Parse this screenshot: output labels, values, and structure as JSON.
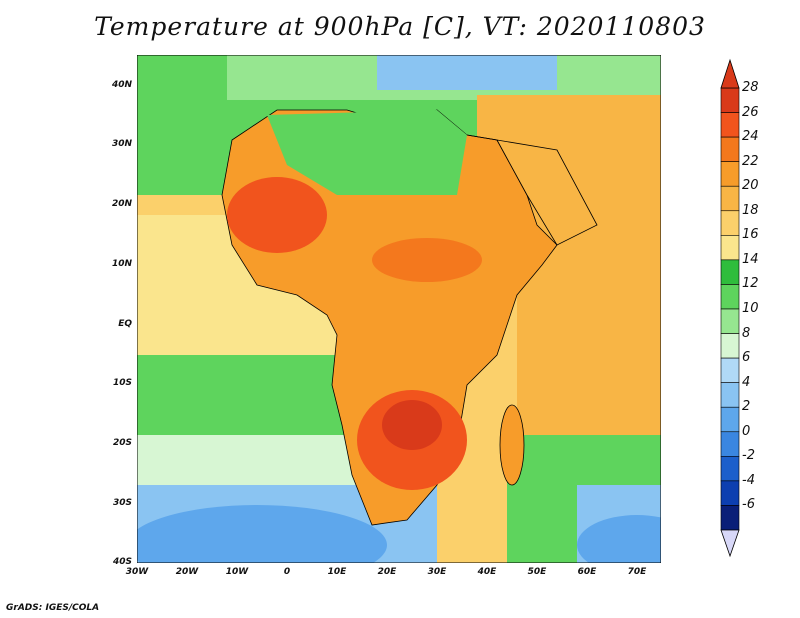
{
  "title": "Temperature at 900hPa [C], VT: 2020110803",
  "credit": "GrADS: IGES/COLA",
  "lat_labels": [
    "40N",
    "30N",
    "20N",
    "10N",
    "EQ",
    "10S",
    "20S",
    "30S",
    "40S"
  ],
  "lon_labels": [
    "30W",
    "20W",
    "10W",
    "0",
    "10E",
    "20E",
    "30E",
    "40E",
    "50E",
    "60E",
    "70E"
  ],
  "colorbar": {
    "labels": [
      "28",
      "26",
      "24",
      "22",
      "20",
      "18",
      "16",
      "14",
      "12",
      "10",
      "8",
      "6",
      "4",
      "2",
      "0",
      "-2",
      "-4",
      "-6"
    ],
    "colors": [
      "#d93a1a",
      "#f1541d",
      "#f4781d",
      "#f79c2a",
      "#f8b545",
      "#fbd06b",
      "#fae58d",
      "#2fbd3c",
      "#5ed45d",
      "#96e690",
      "#d7f6d3",
      "#b0d9f6",
      "#8ac4f2",
      "#5ea7ec",
      "#3a86e0",
      "#1c5fcb",
      "#0d3fb0",
      "#0a1f78"
    ]
  },
  "map_colors": {
    "ocean_warm": "#fbd06b",
    "ocean_mid": "#fae58d",
    "ocean_green": "#5ed45d",
    "ocean_cool": "#96e690",
    "ocean_cold": "#8ac4f2",
    "land_hot": "#f1541d",
    "land_warm": "#f79c2a"
  }
}
